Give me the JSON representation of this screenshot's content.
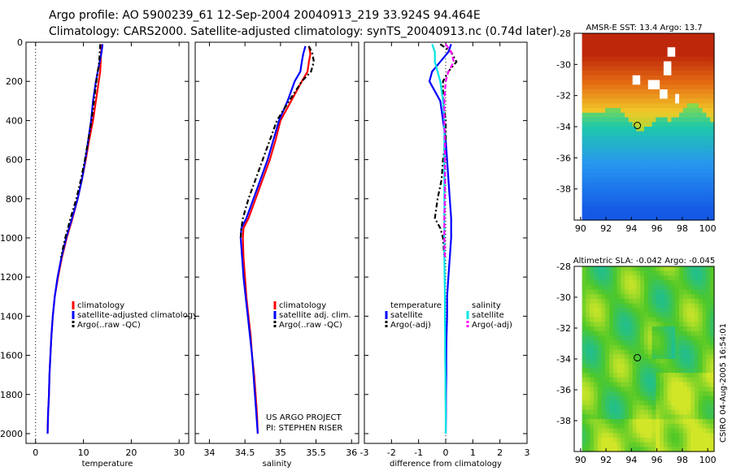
{
  "title_line1": "Argo profile: AO 5900239_61 12-Sep-2004 20040913_219 33.924S 94.464E",
  "title_line2": "Climatology: CARS2000. Satellite-adjusted climatology: synTS_20040913.nc (0.74d later)",
  "credit_line1": "US ARGO PROJECT",
  "credit_line2": "PI: STEPHEN RISER",
  "side_stamp": "CSIRO 04-Aug-2005 16:54:01",
  "colors": {
    "climatology": "#ff0000",
    "satellite": "#0000ff",
    "argo": "#000000",
    "sal_satellite": "#00e5e5",
    "sal_argo": "#ff00ff"
  },
  "chart_data": [
    {
      "type": "line",
      "xlabel": "temperature",
      "ylabel": "",
      "xlim": [
        -2,
        32
      ],
      "ylim": [
        2050,
        0
      ],
      "xticks": [
        0,
        10,
        20,
        30
      ],
      "yticks": [
        0,
        200,
        400,
        600,
        800,
        1000,
        1200,
        1400,
        1600,
        1800,
        2000
      ],
      "legend": [
        "climatology",
        "satellite-adjusted climatology",
        "Argo(..raw -QC)"
      ],
      "series": [
        {
          "name": "climatology",
          "color": "#ff0000",
          "dash": "",
          "points": [
            [
              13.8,
              10
            ],
            [
              13.7,
              50
            ],
            [
              13.6,
              100
            ],
            [
              13.5,
              150
            ],
            [
              13.2,
              200
            ],
            [
              12.6,
              300
            ],
            [
              12.0,
              400
            ],
            [
              11.2,
              500
            ],
            [
              10.5,
              600
            ],
            [
              9.7,
              700
            ],
            [
              8.8,
              800
            ],
            [
              7.7,
              900
            ],
            [
              6.5,
              1000
            ],
            [
              5.5,
              1100
            ],
            [
              4.7,
              1200
            ],
            [
              4.0,
              1300
            ],
            [
              3.6,
              1400
            ],
            [
              3.3,
              1500
            ],
            [
              3.1,
              1600
            ],
            [
              2.9,
              1700
            ],
            [
              2.8,
              1800
            ],
            [
              2.6,
              1900
            ],
            [
              2.5,
              2000
            ]
          ]
        },
        {
          "name": "satellite-adjusted climatology",
          "color": "#0000ff",
          "dash": "",
          "points": [
            [
              14.0,
              10
            ],
            [
              13.8,
              50
            ],
            [
              13.4,
              100
            ],
            [
              13.0,
              150
            ],
            [
              12.6,
              200
            ],
            [
              12.0,
              300
            ],
            [
              11.6,
              400
            ],
            [
              11.0,
              500
            ],
            [
              10.4,
              600
            ],
            [
              9.7,
              700
            ],
            [
              8.8,
              800
            ],
            [
              7.6,
              900
            ],
            [
              6.4,
              1000
            ],
            [
              5.4,
              1100
            ],
            [
              4.6,
              1200
            ],
            [
              4.0,
              1300
            ],
            [
              3.6,
              1400
            ],
            [
              3.3,
              1500
            ],
            [
              3.1,
              1600
            ],
            [
              2.9,
              1700
            ],
            [
              2.8,
              1800
            ],
            [
              2.6,
              1900
            ],
            [
              2.5,
              2000
            ]
          ]
        },
        {
          "name": "Argo(..raw -QC)",
          "color": "#000000",
          "dash": "6,3,2,3",
          "points": [
            [
              13.5,
              10
            ],
            [
              13.4,
              50
            ],
            [
              13.3,
              100
            ],
            [
              13.0,
              150
            ],
            [
              12.7,
              200
            ],
            [
              12.2,
              300
            ],
            [
              11.7,
              400
            ],
            [
              11.0,
              500
            ],
            [
              10.3,
              600
            ],
            [
              9.5,
              700
            ],
            [
              8.5,
              800
            ],
            [
              7.3,
              900
            ],
            [
              6.2,
              1000
            ],
            [
              5.3,
              1100
            ]
          ]
        }
      ]
    },
    {
      "type": "line",
      "xlabel": "salinity",
      "ylabel": "",
      "xlim": [
        33.8,
        36.1
      ],
      "ylim": [
        2050,
        0
      ],
      "xticks": [
        34,
        34.5,
        35,
        35.5,
        36
      ],
      "legend": [
        "climatology",
        "satellite adj. clim.",
        "Argo(..raw -QC)"
      ],
      "series": [
        {
          "name": "climatology",
          "color": "#ff0000",
          "dash": "",
          "points": [
            [
              35.4,
              20
            ],
            [
              35.42,
              60
            ],
            [
              35.4,
              100
            ],
            [
              35.38,
              150
            ],
            [
              35.3,
              200
            ],
            [
              35.15,
              300
            ],
            [
              35.0,
              400
            ],
            [
              34.93,
              500
            ],
            [
              34.85,
              600
            ],
            [
              34.75,
              700
            ],
            [
              34.65,
              800
            ],
            [
              34.55,
              900
            ],
            [
              34.48,
              950
            ],
            [
              34.47,
              1000
            ],
            [
              34.48,
              1100
            ],
            [
              34.5,
              1200
            ],
            [
              34.52,
              1300
            ],
            [
              34.55,
              1400
            ],
            [
              34.58,
              1500
            ],
            [
              34.6,
              1600
            ],
            [
              34.63,
              1700
            ],
            [
              34.65,
              1800
            ],
            [
              34.67,
              1900
            ],
            [
              34.68,
              2000
            ]
          ]
        },
        {
          "name": "satellite adj. clim.",
          "color": "#0000ff",
          "dash": "",
          "points": [
            [
              35.35,
              20
            ],
            [
              35.32,
              60
            ],
            [
              35.3,
              100
            ],
            [
              35.28,
              150
            ],
            [
              35.2,
              200
            ],
            [
              35.1,
              300
            ],
            [
              34.98,
              400
            ],
            [
              34.9,
              500
            ],
            [
              34.82,
              600
            ],
            [
              34.72,
              700
            ],
            [
              34.62,
              800
            ],
            [
              34.52,
              900
            ],
            [
              34.45,
              950
            ],
            [
              34.44,
              1000
            ],
            [
              34.46,
              1100
            ],
            [
              34.48,
              1200
            ],
            [
              34.51,
              1300
            ],
            [
              34.54,
              1400
            ],
            [
              34.57,
              1500
            ],
            [
              34.6,
              1600
            ],
            [
              34.62,
              1700
            ],
            [
              34.64,
              1800
            ],
            [
              34.66,
              1900
            ],
            [
              34.68,
              2000
            ]
          ]
        },
        {
          "name": "Argo(..raw -QC)",
          "color": "#000000",
          "dash": "6,3,2,3",
          "points": [
            [
              35.4,
              20
            ],
            [
              35.45,
              60
            ],
            [
              35.47,
              100
            ],
            [
              35.43,
              150
            ],
            [
              35.3,
              200
            ],
            [
              35.12,
              300
            ],
            [
              34.95,
              400
            ],
            [
              34.85,
              500
            ],
            [
              34.75,
              600
            ],
            [
              34.65,
              700
            ],
            [
              34.55,
              800
            ],
            [
              34.47,
              900
            ],
            [
              34.45,
              950
            ],
            [
              34.44,
              1000
            ]
          ]
        }
      ]
    },
    {
      "type": "line",
      "xlabel": "difference from climatology",
      "ylabel": "",
      "xlim": [
        -3,
        3
      ],
      "ylim": [
        2050,
        0
      ],
      "xticks": [
        -3,
        -2,
        -1,
        0,
        1,
        2,
        3
      ],
      "legend_temperature": [
        "temperature",
        "satellite",
        "Argo(-adj)"
      ],
      "legend_salinity": [
        "salinity",
        "satellite",
        "Argo(-adj)"
      ],
      "series": [
        {
          "name": "satellite",
          "group": "temperature",
          "color": "#0000ff",
          "dash": "",
          "points": [
            [
              0.2,
              10
            ],
            [
              0.1,
              50
            ],
            [
              -0.2,
              100
            ],
            [
              -0.5,
              150
            ],
            [
              -0.6,
              200
            ],
            [
              -0.2,
              300
            ],
            [
              -0.1,
              400
            ],
            [
              0.0,
              500
            ],
            [
              0.05,
              600
            ],
            [
              0.1,
              700
            ],
            [
              0.15,
              800
            ],
            [
              0.2,
              900
            ],
            [
              0.2,
              1000
            ],
            [
              0.15,
              1100
            ],
            [
              0.1,
              1200
            ],
            [
              0.05,
              1300
            ],
            [
              0.05,
              1400
            ],
            [
              0.03,
              1500
            ],
            [
              0.02,
              1600
            ],
            [
              0.02,
              1700
            ],
            [
              0.01,
              1800
            ],
            [
              0.01,
              1900
            ],
            [
              0.0,
              2000
            ]
          ]
        },
        {
          "name": "Argo(-adj)",
          "group": "temperature",
          "color": "#000000",
          "dash": "6,3,2,3",
          "points": [
            [
              -0.2,
              10
            ],
            [
              0.2,
              50
            ],
            [
              0.4,
              100
            ],
            [
              0.1,
              150
            ],
            [
              -0.1,
              200
            ],
            [
              -0.1,
              300
            ],
            [
              0.0,
              400
            ],
            [
              0.0,
              500
            ],
            [
              -0.1,
              600
            ],
            [
              -0.15,
              700
            ],
            [
              -0.3,
              800
            ],
            [
              -0.4,
              900
            ],
            [
              -0.2,
              950
            ],
            [
              -0.1,
              1000
            ],
            [
              -0.05,
              1100
            ]
          ]
        },
        {
          "name": "satellite",
          "group": "salinity",
          "color": "#00e5e5",
          "dash": "",
          "points": [
            [
              -0.5,
              10
            ],
            [
              -0.4,
              50
            ],
            [
              -0.4,
              100
            ],
            [
              -0.3,
              150
            ],
            [
              -0.2,
              200
            ],
            [
              -0.1,
              300
            ],
            [
              -0.05,
              400
            ],
            [
              -0.05,
              500
            ],
            [
              -0.05,
              600
            ],
            [
              -0.05,
              700
            ],
            [
              -0.05,
              800
            ],
            [
              -0.05,
              900
            ],
            [
              -0.05,
              1000
            ],
            [
              -0.05,
              1100
            ],
            [
              -0.04,
              1200
            ],
            [
              -0.03,
              1300
            ],
            [
              -0.03,
              1400
            ],
            [
              -0.02,
              1500
            ],
            [
              -0.02,
              1600
            ],
            [
              -0.01,
              1700
            ],
            [
              -0.01,
              1800
            ],
            [
              0.0,
              1900
            ],
            [
              0.0,
              2000
            ]
          ]
        },
        {
          "name": "Argo(-adj)",
          "group": "salinity",
          "color": "#ff00ff",
          "dash": "6,3",
          "points": [
            [
              0.0,
              10
            ],
            [
              0.2,
              50
            ],
            [
              0.3,
              100
            ],
            [
              0.1,
              150
            ],
            [
              0.0,
              200
            ],
            [
              -0.05,
              300
            ],
            [
              -0.05,
              400
            ],
            [
              -0.03,
              500
            ],
            [
              -0.03,
              600
            ],
            [
              -0.02,
              700
            ],
            [
              -0.03,
              800
            ],
            [
              -0.05,
              900
            ],
            [
              -0.05,
              1000
            ],
            [
              -0.03,
              1100
            ]
          ]
        }
      ]
    },
    {
      "type": "heatmap",
      "title": "AMSR-E SST: 13.4 Argo: 13.7",
      "xlim": [
        89.5,
        100.5
      ],
      "ylim": [
        -40,
        -28
      ],
      "xticks": [
        90,
        92,
        94,
        96,
        98,
        100
      ],
      "yticks": [
        -28,
        -30,
        -32,
        -34,
        -36,
        -38
      ],
      "argo_position": [
        94.464,
        -33.924
      ]
    },
    {
      "type": "heatmap",
      "title": "Altimetric SLA: -0.042 Argo: -0.045",
      "xlim": [
        89.5,
        100.5
      ],
      "ylim": [
        -40,
        -28
      ],
      "xticks": [
        90,
        92,
        94,
        96,
        98,
        100
      ],
      "yticks": [
        -28,
        -30,
        -32,
        -34,
        -36,
        -38
      ],
      "argo_position": [
        94.464,
        -33.924
      ]
    }
  ]
}
